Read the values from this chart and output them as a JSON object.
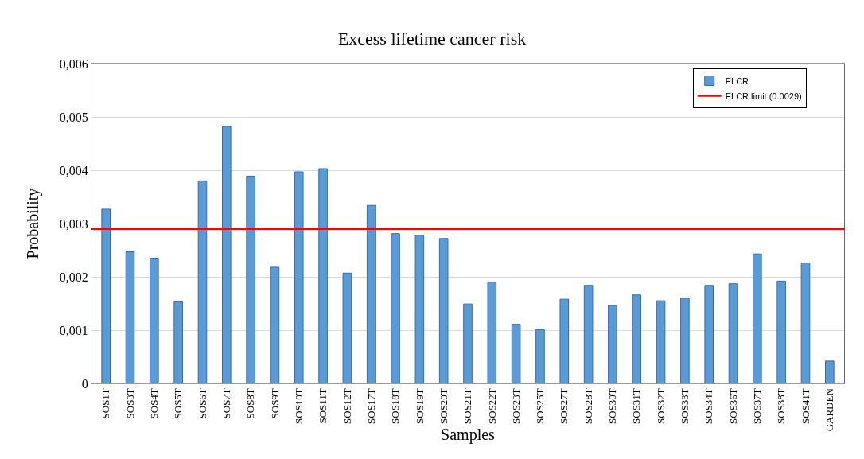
{
  "chart_data": {
    "type": "bar",
    "title": "Excess lifetime cancer risk",
    "xlabel": "Samples",
    "ylabel": "Probability",
    "categories": [
      "SOS1T",
      "SOS3T",
      "SOS4T",
      "SOS5T",
      "SOS6T",
      "SOS7T",
      "SOS8T",
      "SOS9T",
      "SOS10T",
      "SOS11T",
      "SOS12T",
      "SOS17T",
      "SOS18T",
      "SOS19T",
      "SOS20T",
      "SOS21T",
      "SOS22T",
      "SOS23T",
      "SOS25T",
      "SOS27T",
      "SOS28T",
      "SOS30T",
      "SOS31T",
      "SOS32T",
      "SOS33T",
      "SOS34T",
      "SOS36T",
      "SOS37T",
      "SOS38T",
      "SOS41T",
      "GARDEN"
    ],
    "series": [
      {
        "name": "ELCR",
        "color": "#5b9bd5",
        "values": [
          0.00327,
          0.00247,
          0.00235,
          0.00153,
          0.0038,
          0.00482,
          0.00389,
          0.00218,
          0.00397,
          0.00403,
          0.00207,
          0.00334,
          0.00281,
          0.00278,
          0.00272,
          0.00149,
          0.0019,
          0.00111,
          0.00101,
          0.00158,
          0.00184,
          0.00146,
          0.00166,
          0.00155,
          0.0016,
          0.00184,
          0.00187,
          0.00243,
          0.00192,
          0.00226,
          0.00042
        ]
      }
    ],
    "ref_lines": [
      {
        "axis": "y",
        "value": 0.0029,
        "label": "ELCR limit (0.0029)",
        "color": "#ff0000",
        "line_style": "solid"
      }
    ],
    "ylim": [
      0,
      0.006
    ],
    "yticks": [
      {
        "value": 0,
        "label": "0"
      },
      {
        "value": 0.001,
        "label": "0,001"
      },
      {
        "value": 0.002,
        "label": "0,002"
      },
      {
        "value": 0.003,
        "label": "0,003"
      },
      {
        "value": 0.004,
        "label": "0,004"
      },
      {
        "value": 0.005,
        "label": "0,005"
      },
      {
        "value": 0.006,
        "label": "0,006"
      }
    ],
    "grid": "y",
    "legend": "top right"
  }
}
